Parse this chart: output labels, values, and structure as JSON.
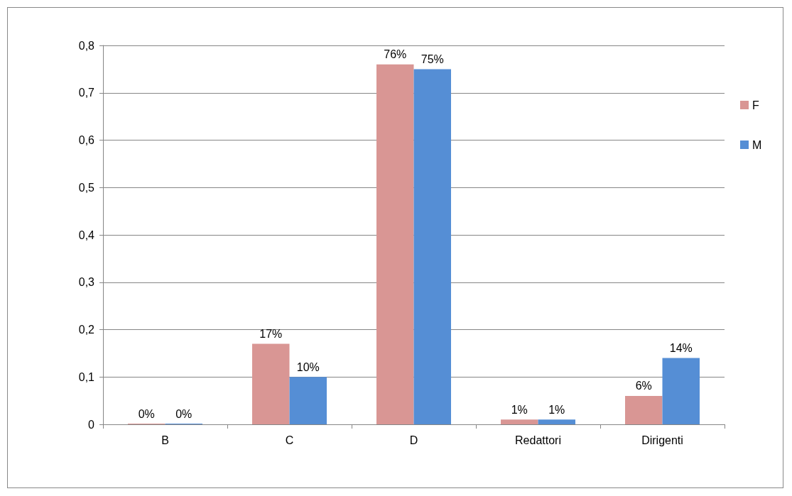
{
  "chart_data": {
    "type": "bar",
    "categories": [
      "B",
      "C",
      "D",
      "Redattori",
      "Dirigenti"
    ],
    "series": [
      {
        "name": "F",
        "color": "#d99694",
        "values": [
          0,
          0.17,
          0.76,
          0.01,
          0.06
        ],
        "value_labels": [
          "0%",
          "17%",
          "76%",
          "1%",
          "6%"
        ]
      },
      {
        "name": "M",
        "color": "#558ed5",
        "values": [
          0,
          0.1,
          0.75,
          0.01,
          0.14
        ],
        "value_labels": [
          "0%",
          "10%",
          "75%",
          "1%",
          "14%"
        ]
      }
    ],
    "ylim": [
      0,
      0.8
    ],
    "yticks": [
      0,
      {
        "value": 0.1,
        "label": "0,1"
      },
      {
        "value": 0.2,
        "label": "0,2"
      },
      {
        "value": 0.3,
        "label": "0,3"
      },
      {
        "value": 0.4,
        "label": "0,4"
      },
      {
        "value": 0.5,
        "label": "0,5"
      },
      {
        "value": 0.6,
        "label": "0,6"
      },
      {
        "value": 0.7,
        "label": "0,7"
      },
      {
        "value": 0.8,
        "label": "0,8"
      }
    ],
    "grid": "y",
    "legend": "right"
  }
}
